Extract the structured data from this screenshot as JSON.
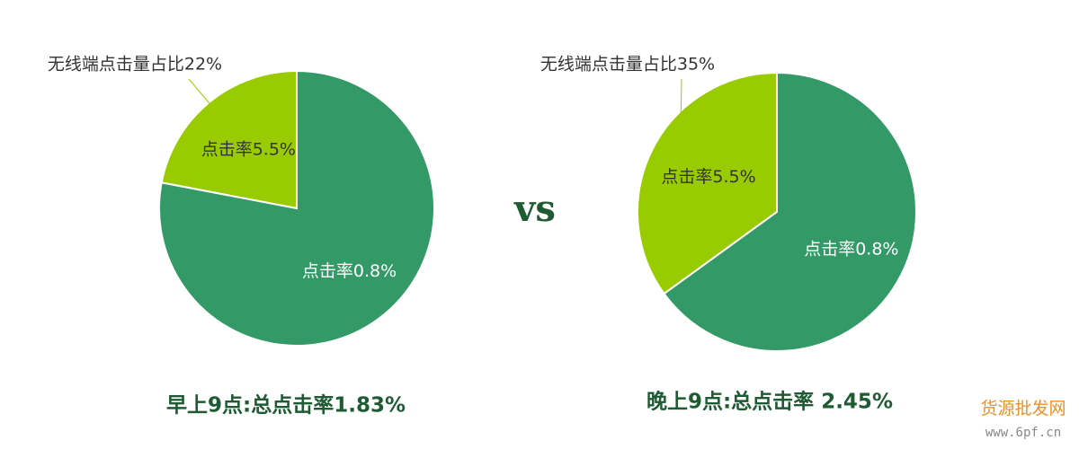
{
  "chart_data": [
    {
      "type": "pie",
      "title": "早上9点:总点击率1.83%",
      "annotation": "无线端点击量占比22%",
      "categories": [
        "点击率5.5%",
        "点击率0.8%"
      ],
      "values": [
        22,
        78
      ],
      "colors": [
        "#99cc00",
        "#339966"
      ]
    },
    {
      "type": "pie",
      "title": "晚上9点:总点击率 2.45%",
      "annotation": "无线端点击量占比35%",
      "categories": [
        "点击率5.5%",
        "点击率0.8%"
      ],
      "values": [
        35,
        65
      ],
      "colors": [
        "#99cc00",
        "#339966"
      ]
    }
  ],
  "separator": "vs",
  "watermark": {
    "name": "货源批发网",
    "url": "www.6pf.cn"
  }
}
